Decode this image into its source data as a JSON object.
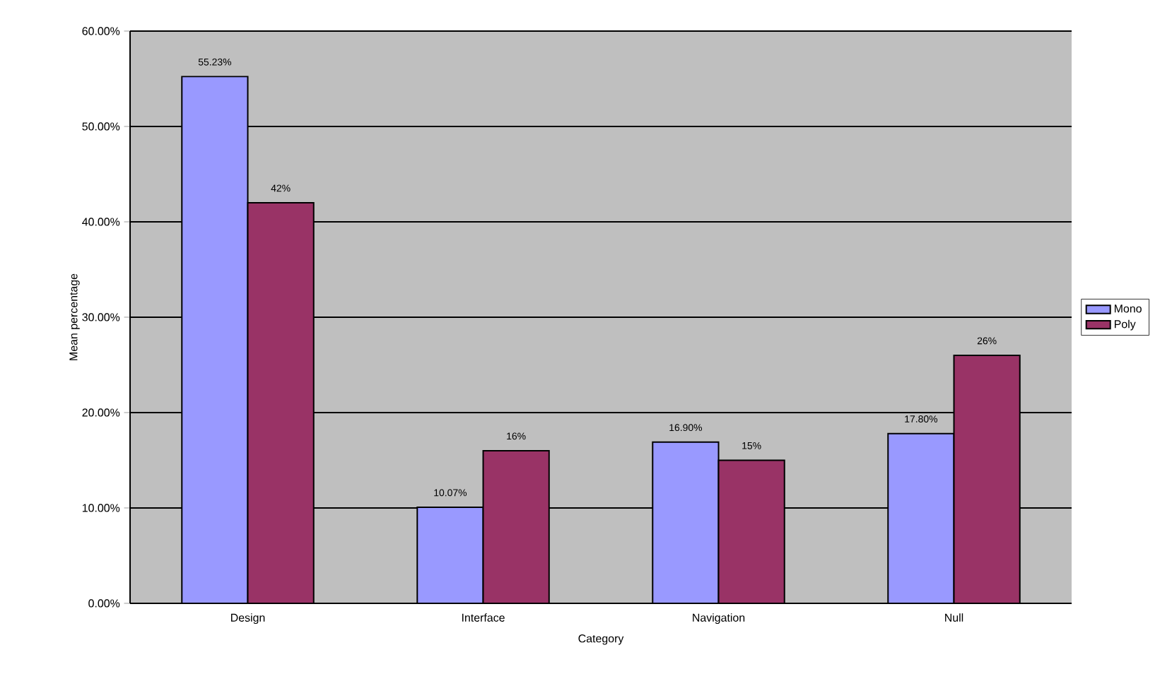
{
  "chart_data": {
    "type": "bar",
    "xlabel": "Category",
    "ylabel": "Mean percentage",
    "categories": [
      "Design",
      "Interface",
      "Navigation",
      "Null"
    ],
    "series": [
      {
        "name": "Mono",
        "color": "#9999ff",
        "values": [
          55.23,
          10.07,
          16.9,
          17.8
        ],
        "value_labels": [
          "55.23%",
          "10.07%",
          "16.90%",
          "17.80%"
        ]
      },
      {
        "name": "Poly",
        "color": "#993366",
        "values": [
          42,
          16,
          15,
          26
        ],
        "value_labels": [
          "42%",
          "16%",
          "15%",
          "26%"
        ]
      }
    ],
    "ylim": [
      0,
      60
    ],
    "yticks": [
      {
        "value": 0,
        "label": "0.00%"
      },
      {
        "value": 10,
        "label": "10.00%"
      },
      {
        "value": 20,
        "label": "20.00%"
      },
      {
        "value": 30,
        "label": "30.00%"
      },
      {
        "value": 40,
        "label": "40.00%"
      },
      {
        "value": 50,
        "label": "50.00%"
      },
      {
        "value": 60,
        "label": "60.00%"
      }
    ],
    "grid": "y",
    "legend": "right"
  }
}
